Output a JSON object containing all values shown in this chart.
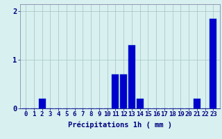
{
  "hours": [
    0,
    1,
    2,
    3,
    4,
    5,
    6,
    7,
    8,
    9,
    10,
    11,
    12,
    13,
    14,
    15,
    16,
    17,
    18,
    19,
    20,
    21,
    22,
    23
  ],
  "values": [
    0,
    0,
    0.2,
    0,
    0,
    0,
    0,
    0,
    0,
    0,
    0,
    0.7,
    0.7,
    1.3,
    0.2,
    0,
    0,
    0,
    0,
    0,
    0,
    0.2,
    0,
    1.85
  ],
  "bar_color": "#0000cc",
  "bar_edge_color": "#0044cc",
  "background_color": "#d8f0f0",
  "grid_color": "#aec8c8",
  "axis_color": "#8888aa",
  "text_color": "#000080",
  "xlabel": "Précipitations 1h ( mm )",
  "ylim": [
    0,
    2.15
  ],
  "yticks": [
    0,
    1,
    2
  ],
  "label_fontsize": 7.5,
  "tick_fontsize": 6.5
}
